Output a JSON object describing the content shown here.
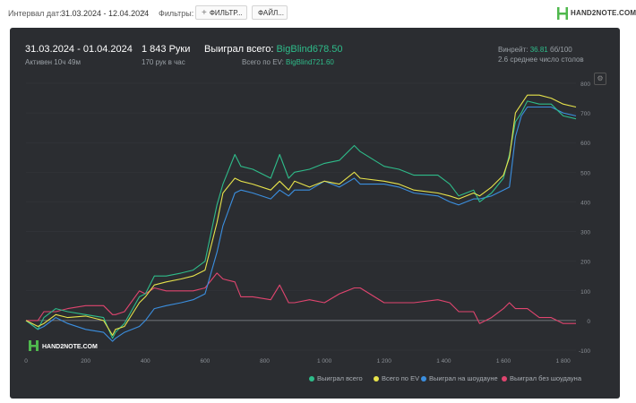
{
  "toolbar": {
    "interval_label": "Интервал дат:",
    "date_range": "31.03.2024 - 12.04.2024",
    "filters_label": "Фильтры:",
    "filter_button": "ФИЛЬТР...",
    "file_button": "ФАЙЛ...",
    "logo_text": "HAND2NOTE.COM"
  },
  "header": {
    "range": "31.03.2024 - 01.04.2024",
    "active": "Активен 10ч 49м",
    "hands": "1 843 Руки",
    "hands_per_hour": "170 рук в час",
    "won_label": "Выиграл всего:",
    "won_value": "BigBlind678.50",
    "ev_label": "Всего по EV:",
    "ev_value": "BigBlind721.60",
    "winrate_label": "Винрейт:",
    "winrate_value": "36.81",
    "winrate_unit": "бб/100",
    "tables": "2.6 среднее число столов"
  },
  "watermark": "HAND2NOTE.COM",
  "colors": {
    "won": "#2ebc8a",
    "ev": "#e7e34b",
    "showdown": "#3b8fe0",
    "nonshowdown": "#e0456f",
    "panel": "#2b2d31"
  },
  "chart_data": {
    "type": "line",
    "xlim": [
      0,
      1843
    ],
    "ylim": [
      -100,
      800
    ],
    "x_ticks": [
      "0",
      "200",
      "400",
      "600",
      "800",
      "1 000",
      "1 200",
      "1 400",
      "1 600",
      "1 800"
    ],
    "y_ticks": [
      "800",
      "700",
      "600",
      "500",
      "400",
      "300",
      "200",
      "100",
      "0",
      "-100"
    ],
    "series": [
      {
        "name": "Выиграл всего",
        "color": "#2ebc8a",
        "x": [
          0,
          40,
          60,
          100,
          140,
          200,
          260,
          290,
          300,
          330,
          380,
          400,
          430,
          470,
          520,
          560,
          600,
          640,
          660,
          700,
          720,
          760,
          820,
          850,
          880,
          900,
          950,
          1000,
          1050,
          1100,
          1120,
          1200,
          1250,
          1300,
          1380,
          1420,
          1450,
          1500,
          1520,
          1560,
          1600,
          1620,
          1640,
          1660,
          1680,
          1720,
          1760,
          1800,
          1843
        ],
        "y": [
          0,
          -30,
          10,
          40,
          30,
          20,
          10,
          -60,
          -40,
          -10,
          80,
          90,
          150,
          150,
          160,
          170,
          200,
          390,
          460,
          560,
          520,
          510,
          480,
          560,
          480,
          500,
          510,
          530,
          540,
          590,
          570,
          520,
          510,
          490,
          490,
          460,
          420,
          440,
          400,
          430,
          480,
          560,
          670,
          700,
          740,
          730,
          730,
          690,
          680
        ]
      },
      {
        "name": "Всего по EV",
        "color": "#e7e34b",
        "x": [
          0,
          40,
          60,
          100,
          140,
          200,
          260,
          290,
          300,
          330,
          380,
          400,
          430,
          470,
          520,
          560,
          600,
          640,
          660,
          700,
          720,
          760,
          820,
          850,
          880,
          900,
          950,
          1000,
          1050,
          1100,
          1120,
          1200,
          1250,
          1300,
          1380,
          1420,
          1450,
          1500,
          1520,
          1560,
          1600,
          1620,
          1640,
          1660,
          1680,
          1720,
          1760,
          1800,
          1843
        ],
        "y": [
          0,
          -20,
          -10,
          20,
          10,
          15,
          0,
          -50,
          -30,
          -20,
          60,
          80,
          120,
          130,
          140,
          150,
          170,
          330,
          430,
          480,
          470,
          460,
          440,
          470,
          440,
          470,
          450,
          470,
          460,
          500,
          480,
          470,
          460,
          440,
          430,
          420,
          410,
          430,
          420,
          450,
          490,
          550,
          700,
          730,
          760,
          760,
          750,
          730,
          720
        ]
      },
      {
        "name": "Выиграл на шоудауне",
        "color": "#3b8fe0",
        "x": [
          0,
          40,
          60,
          100,
          140,
          200,
          260,
          290,
          300,
          330,
          380,
          400,
          430,
          470,
          520,
          560,
          600,
          640,
          660,
          700,
          720,
          760,
          820,
          850,
          880,
          900,
          950,
          1000,
          1050,
          1100,
          1120,
          1200,
          1250,
          1300,
          1380,
          1420,
          1450,
          1500,
          1520,
          1560,
          1600,
          1620,
          1640,
          1660,
          1680,
          1720,
          1760,
          1800,
          1843
        ],
        "y": [
          0,
          -30,
          -20,
          10,
          -10,
          -30,
          -40,
          -70,
          -60,
          -40,
          -20,
          0,
          40,
          50,
          60,
          70,
          90,
          230,
          320,
          430,
          440,
          430,
          410,
          440,
          420,
          440,
          440,
          470,
          450,
          480,
          460,
          460,
          450,
          430,
          420,
          400,
          390,
          410,
          410,
          420,
          440,
          450,
          620,
          690,
          720,
          720,
          720,
          700,
          690
        ]
      },
      {
        "name": "Выиграл без шоудауна",
        "color": "#e0456f",
        "x": [
          0,
          40,
          60,
          100,
          140,
          200,
          260,
          290,
          300,
          330,
          380,
          400,
          430,
          470,
          520,
          560,
          600,
          640,
          660,
          700,
          720,
          760,
          820,
          850,
          880,
          900,
          950,
          1000,
          1050,
          1100,
          1120,
          1200,
          1250,
          1300,
          1380,
          1420,
          1450,
          1500,
          1520,
          1560,
          1600,
          1620,
          1640,
          1660,
          1680,
          1720,
          1760,
          1800,
          1843
        ],
        "y": [
          0,
          0,
          30,
          30,
          40,
          50,
          50,
          20,
          20,
          30,
          100,
          90,
          110,
          100,
          100,
          100,
          110,
          160,
          140,
          130,
          80,
          80,
          70,
          120,
          60,
          60,
          70,
          60,
          90,
          110,
          110,
          60,
          60,
          60,
          70,
          60,
          30,
          30,
          -10,
          10,
          40,
          60,
          40,
          40,
          40,
          10,
          10,
          -10,
          -10
        ]
      }
    ]
  },
  "legend": [
    {
      "label": "Выиграл всего",
      "color": "#2ebc8a"
    },
    {
      "label": "Всего по EV",
      "color": "#e7e34b"
    },
    {
      "label": "Выиграл на шоудауне",
      "color": "#3b8fe0"
    },
    {
      "label": "Выиграл без шоудауна",
      "color": "#e0456f"
    }
  ]
}
